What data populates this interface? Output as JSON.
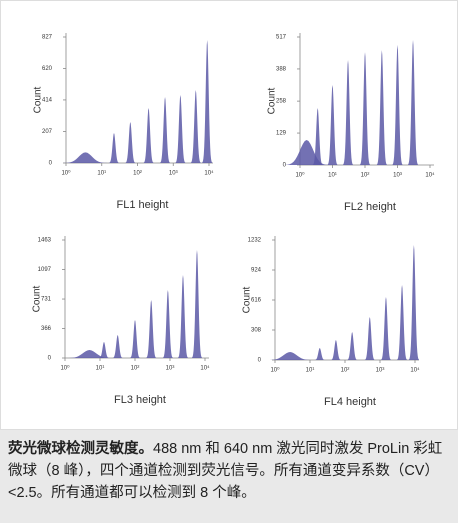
{
  "chart_data": [
    {
      "type": "area",
      "x_label": "FL1 height",
      "y_label": "Count",
      "color": "#5a58a6",
      "log_x": true,
      "x": [
        3.5,
        22,
        63,
        204,
        589,
        1585,
        4266,
        8900
      ],
      "values": [
        70,
        197,
        269,
        361,
        433,
        446,
        479,
        807
      ],
      "xlim": [
        1,
        10000
      ],
      "ylim": [
        0,
        827
      ],
      "xticks": [
        {
          "value": 1,
          "label": "10⁰"
        },
        {
          "value": 10,
          "label": "10¹"
        },
        {
          "value": 100,
          "label": "10²"
        },
        {
          "value": 1000,
          "label": "10³"
        },
        {
          "value": 10000,
          "label": "10⁴"
        }
      ],
      "yticks": [
        0,
        207,
        414,
        620,
        827
      ]
    },
    {
      "type": "area",
      "x_label": "FL2 height",
      "y_label": "Count",
      "color": "#5a58a6",
      "log_x": true,
      "x": [
        1.6,
        3.5,
        10,
        30,
        100,
        330,
        1000,
        3000
      ],
      "values": [
        101,
        230,
        323,
        424,
        456,
        464,
        485,
        505
      ],
      "xlim": [
        1,
        10000
      ],
      "ylim": [
        0,
        517
      ],
      "xticks": [
        {
          "value": 1,
          "label": "10⁰"
        },
        {
          "value": 10,
          "label": "10¹"
        },
        {
          "value": 100,
          "label": "10²"
        },
        {
          "value": 1000,
          "label": "10³"
        },
        {
          "value": 10000,
          "label": "10⁴"
        }
      ],
      "yticks": [
        0,
        129,
        258,
        388,
        517
      ]
    },
    {
      "type": "area",
      "x_label": "FL3 height",
      "y_label": "Count",
      "color": "#5a58a6",
      "log_x": true,
      "x": [
        5,
        13,
        32,
        100,
        290,
        870,
        2350,
        5900
      ],
      "values": [
        99,
        198,
        285,
        471,
        719,
        843,
        1029,
        1339
      ],
      "xlim": [
        1,
        10000
      ],
      "ylim": [
        0,
        1463
      ],
      "xticks": [
        {
          "value": 1,
          "label": "10⁰"
        },
        {
          "value": 10,
          "label": "10¹"
        },
        {
          "value": 100,
          "label": "10²"
        },
        {
          "value": 1000,
          "label": "10³"
        },
        {
          "value": 10000,
          "label": "10⁴"
        }
      ],
      "yticks": [
        0,
        366,
        731,
        1097,
        1463
      ]
    },
    {
      "type": "area",
      "x_label": "FL4 height",
      "y_label": "Count",
      "color": "#5a58a6",
      "log_x": true,
      "x": [
        2.7,
        19,
        55,
        160,
        510,
        1480,
        4260,
        9300
      ],
      "values": [
        82,
        123,
        205,
        287,
        441,
        647,
        770,
        1181
      ],
      "xlim": [
        1,
        10000
      ],
      "ylim": [
        0,
        1232
      ],
      "xticks": [
        {
          "value": 1,
          "label": "10⁰"
        },
        {
          "value": 10,
          "label": "10¹"
        },
        {
          "value": 100,
          "label": "10²"
        },
        {
          "value": 1000,
          "label": "10³"
        },
        {
          "value": 10000,
          "label": "10⁴"
        }
      ],
      "yticks": [
        0,
        308,
        616,
        924,
        1232
      ]
    }
  ],
  "caption": {
    "bold": "荧光微球检测灵敏度。",
    "text": "488 nm 和 640 nm 激光同时激发 ProLin 彩虹微球（8 峰），四个通道检测到荧光信号。所有通道变异系数（CV）<2.5。所有通道都可以检测到 8 个峰。"
  }
}
